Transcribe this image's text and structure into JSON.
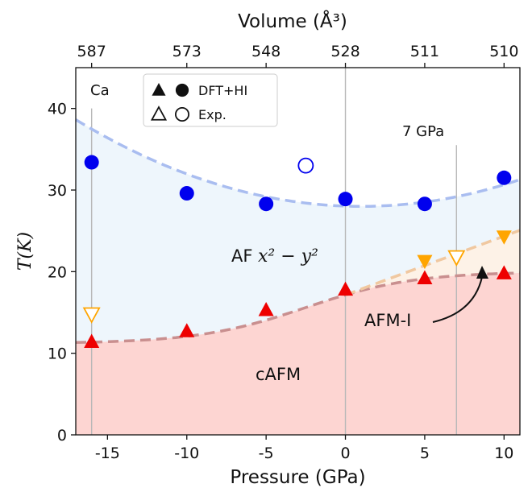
{
  "chart_data": {
    "type": "scatter",
    "xlabel": "Pressure (GPa)",
    "top_xlabel": "Volume (Å³)",
    "ylabel": "T(K)",
    "xlim": [
      -17,
      11
    ],
    "ylim": [
      0,
      45
    ],
    "x_ticks": [
      -15,
      -10,
      -5,
      0,
      5,
      10
    ],
    "y_ticks": [
      0,
      10,
      20,
      30,
      40
    ],
    "top_ticks": [
      {
        "x": -16,
        "label": "587"
      },
      {
        "x": -10,
        "label": "573"
      },
      {
        "x": -5,
        "label": "548"
      },
      {
        "x": 0,
        "label": "528"
      },
      {
        "x": 5,
        "label": "511"
      },
      {
        "x": 10,
        "label": "510"
      }
    ],
    "vertical_lines": [
      -16,
      0,
      7
    ],
    "colors": {
      "af_marker": "#0000ee",
      "cafm_marker": "#ee0000",
      "afmi_marker": "#ffa500",
      "af_curve": "#a9bdf0",
      "cafm_curve": "#c98f8f",
      "afmi_curve": "#f0c8a0",
      "af_fill": "#eef6fc",
      "cafm_fill": "#fdd5d2",
      "afmi_fill": "#fdf2e7"
    },
    "series": [
      {
        "marker": "filled-circle",
        "color": "#0000ee",
        "x": [
          -16,
          -10,
          -5,
          0,
          5,
          10
        ],
        "y": [
          33.4,
          29.6,
          28.3,
          28.9,
          28.3,
          31.5
        ]
      },
      {
        "marker": "filled-triangle-up",
        "color": "#ee0000",
        "x": [
          -16,
          -10,
          -5,
          0,
          5,
          10
        ],
        "y": [
          11.4,
          12.7,
          15.3,
          17.8,
          19.2,
          19.8
        ]
      },
      {
        "marker": "filled-triangle-down",
        "color": "#ffa500",
        "x": [
          5,
          10
        ],
        "y": [
          21.3,
          24.3
        ]
      },
      {
        "marker": "open-circle",
        "color": "#0000ee",
        "x": [
          -2.5
        ],
        "y": [
          33.0
        ]
      },
      {
        "marker": "open-triangle-down",
        "color": "#ffa500",
        "x": [
          -16,
          7
        ],
        "y": [
          14.8,
          21.8
        ]
      }
    ],
    "annotations": {
      "ca": "Ca",
      "pressure_7": "7 GPa",
      "af_region": "AF",
      "af_math": "x² − y²",
      "cafm": "cAFM",
      "afmi": "AFM-I"
    },
    "legend": {
      "placement": "top-left",
      "rows": [
        {
          "label": "DFT+HI",
          "markers": [
            "filled-triangle-up",
            "filled-circle"
          ]
        },
        {
          "label": "Exp.",
          "markers": [
            "open-triangle-up",
            "open-circle"
          ]
        }
      ]
    }
  }
}
